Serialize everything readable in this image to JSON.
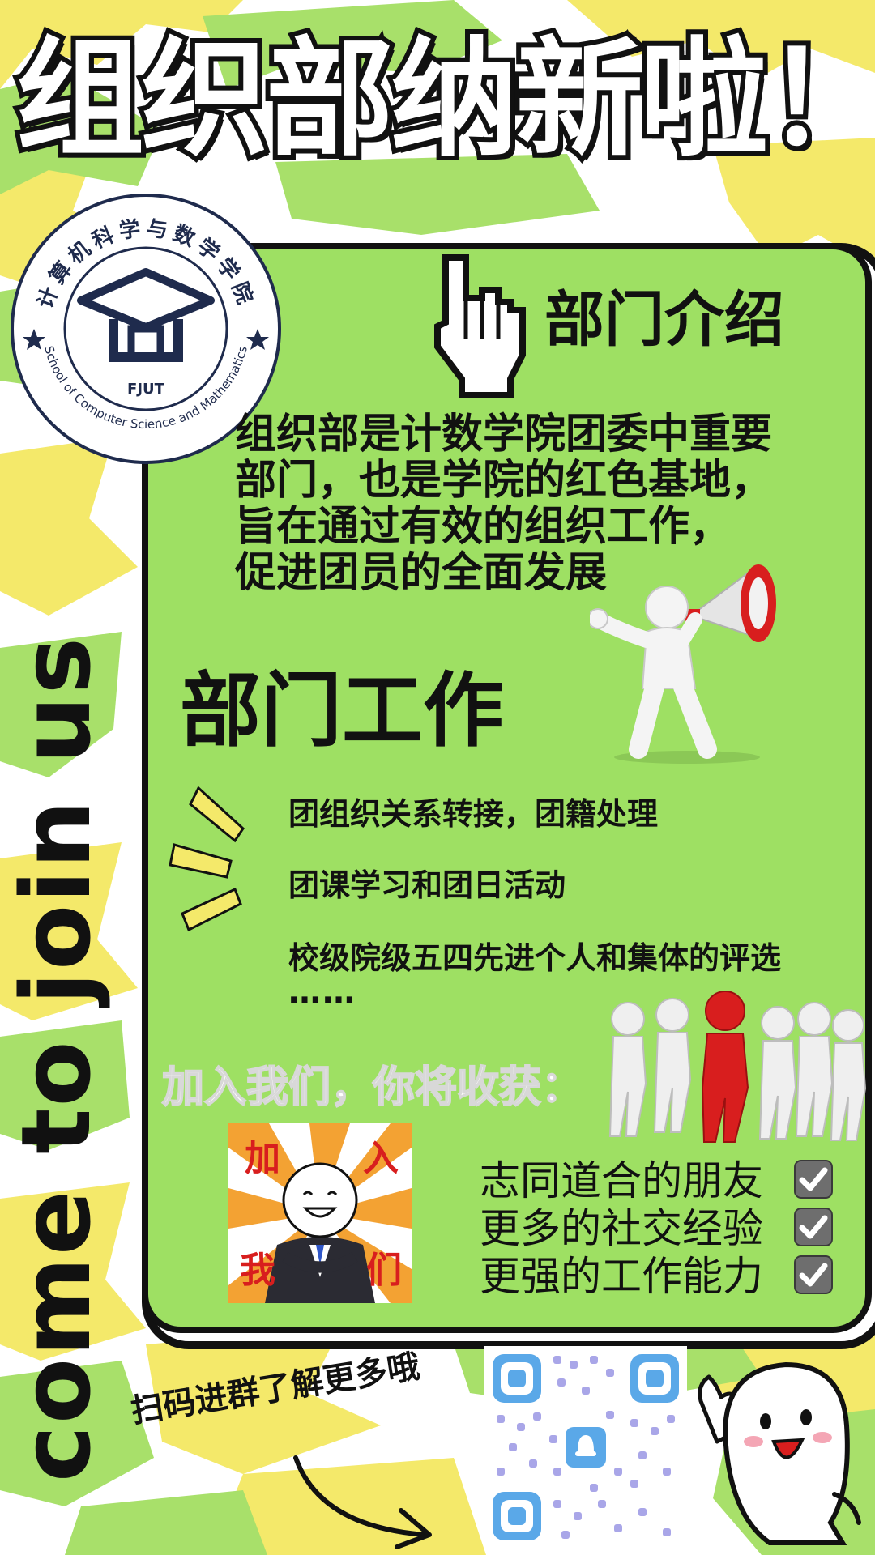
{
  "poster": {
    "title": "组织部纳新啦！",
    "logo": {
      "name_cn": "计算机科学与数学学院",
      "name_en": "School of Computer Science and Mathematics",
      "abbr": "FJUT"
    },
    "intro": {
      "heading": "部门介绍",
      "lines": [
        "组织部是计数学院团委中重要",
        "部门，也是学院的红色基地，",
        "旨在通过有效的组织工作，",
        "促进团员的全面发展"
      ]
    },
    "work": {
      "heading": "部门工作",
      "items": [
        "团组织关系转接，团籍处理",
        "团课学习和团日活动",
        "校级院级五四先进个人和集体的评选"
      ],
      "ellipsis": "……"
    },
    "join": {
      "heading": "加入我们，你将收获：",
      "sticker": [
        "加",
        "入",
        "我",
        "们"
      ],
      "benefits": [
        "志同道合的朋友",
        "更多的社交经验",
        "更强的工作能力"
      ]
    },
    "side_slogan": "come to join us",
    "scan_caption": "扫码进群了解更多哦"
  },
  "colors": {
    "panel_green": "#9ee063",
    "splash_yellow": "#f4e96a",
    "splash_green": "#a8e06a",
    "ink": "#111111",
    "logo_navy": "#1f2b4d",
    "megaphone_red": "#d81e1e",
    "qr_blue": "#5aa8e8"
  }
}
